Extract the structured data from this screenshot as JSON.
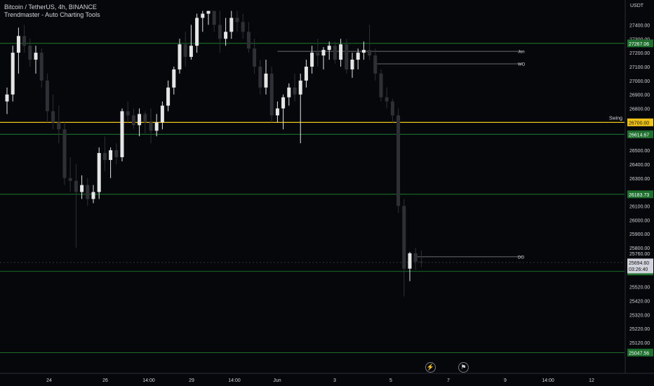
{
  "header": {
    "symbol": "Bitcoin / TetherUS, 4h, BINANCE",
    "indicator": "Trendmaster - Auto Charting Tools"
  },
  "price_scale": {
    "currency": "USDT",
    "ticks": [
      27400,
      27300,
      27200,
      27100,
      27000,
      26900,
      26800,
      26600,
      26500,
      26400,
      26300,
      26200,
      26100,
      26000,
      25900,
      25800,
      25760,
      25520,
      25420,
      25320,
      25220,
      25120
    ],
    "countdown": "03:26:40"
  },
  "time_axis": {
    "labels": [
      "24",
      "26",
      "14:00",
      "29",
      "14:00",
      "Jun",
      "3",
      "5",
      "7",
      "9",
      "14:00",
      "12"
    ]
  },
  "toolbar": {
    "replay_icon": "lightning-icon",
    "snapshot_icon": "flag-icon"
  },
  "colors": {
    "background": "#06070b",
    "candle_up": "#e6e6e6",
    "candle_down": "#2f3036",
    "support_line": "#1f8f34",
    "swing_line": "#f0c419",
    "label_green": "#1e6f2e",
    "label_current": "#d1d4dc",
    "level_line": "#8a8c93"
  },
  "chart_data": {
    "type": "candlestick",
    "title": "Bitcoin / TetherUS, 4h, BINANCE",
    "ylim": [
      25000,
      27500
    ],
    "ohlc": [
      [
        26850,
        26950,
        26760,
        26900
      ],
      [
        26900,
        27250,
        26850,
        27200
      ],
      [
        27200,
        27380,
        27050,
        27320
      ],
      [
        27320,
        27400,
        27200,
        27250
      ],
      [
        27250,
        27300,
        27100,
        27150
      ],
      [
        27150,
        27250,
        27050,
        27200
      ],
      [
        27200,
        27230,
        26950,
        27000
      ],
      [
        27000,
        27050,
        26700,
        26780
      ],
      [
        26780,
        26900,
        26650,
        26700
      ],
      [
        26700,
        26820,
        26550,
        26650
      ],
      [
        26650,
        26700,
        26250,
        26300
      ],
      [
        26300,
        26450,
        26200,
        26280
      ],
      [
        26280,
        26400,
        25800,
        26200
      ],
      [
        26200,
        26320,
        26150,
        26250
      ],
      [
        26250,
        26300,
        26100,
        26150
      ],
      [
        26150,
        26250,
        26120,
        26200
      ],
      [
        26200,
        26520,
        26150,
        26480
      ],
      [
        26480,
        26600,
        26350,
        26430
      ],
      [
        26430,
        26520,
        26300,
        26500
      ],
      [
        26500,
        26550,
        26400,
        26450
      ],
      [
        26450,
        26800,
        26420,
        26780
      ],
      [
        26780,
        26850,
        26700,
        26750
      ],
      [
        26750,
        26800,
        26650,
        26680
      ],
      [
        26680,
        26800,
        26600,
        26760
      ],
      [
        26760,
        26780,
        26620,
        26700
      ],
      [
        26700,
        26800,
        26550,
        26640
      ],
      [
        26640,
        26760,
        26600,
        26700
      ],
      [
        26700,
        26850,
        26650,
        26820
      ],
      [
        26820,
        27000,
        26780,
        26950
      ],
      [
        26950,
        27100,
        26900,
        27080
      ],
      [
        27080,
        27300,
        27050,
        27260
      ],
      [
        27260,
        27350,
        27100,
        27170
      ],
      [
        27170,
        27400,
        27150,
        27250
      ],
      [
        27250,
        27480,
        27200,
        27450
      ],
      [
        27450,
        27500,
        27350,
        27480
      ],
      [
        27480,
        27500,
        27400,
        27500
      ],
      [
        27500,
        27500,
        27350,
        27400
      ],
      [
        27400,
        27500,
        27200,
        27300
      ],
      [
        27300,
        27450,
        27250,
        27350
      ],
      [
        27350,
        27500,
        27300,
        27450
      ],
      [
        27450,
        27500,
        27350,
        27420
      ],
      [
        27420,
        27480,
        27300,
        27350
      ],
      [
        27350,
        27420,
        27200,
        27230
      ],
      [
        27230,
        27300,
        27050,
        27100
      ],
      [
        27100,
        27150,
        26900,
        26950
      ],
      [
        26950,
        27150,
        26900,
        27050
      ],
      [
        27050,
        27100,
        26700,
        26750
      ],
      [
        26750,
        26850,
        26700,
        26800
      ],
      [
        26800,
        26900,
        26650,
        26880
      ],
      [
        26880,
        26980,
        26820,
        26950
      ],
      [
        26950,
        27050,
        26850,
        26900
      ],
      [
        26900,
        27050,
        26550,
        27000
      ],
      [
        27000,
        27150,
        26950,
        27100
      ],
      [
        27100,
        27250,
        27050,
        27200
      ],
      [
        27200,
        27300,
        27100,
        27180
      ],
      [
        27180,
        27240,
        27080,
        27220
      ],
      [
        27220,
        27280,
        27150,
        27250
      ],
      [
        27250,
        27280,
        27120,
        27150
      ],
      [
        27150,
        27300,
        27100,
        27260
      ],
      [
        27260,
        27300,
        27050,
        27080
      ],
      [
        27080,
        27200,
        27020,
        27150
      ],
      [
        27150,
        27230,
        27080,
        27200
      ],
      [
        27200,
        27280,
        27150,
        27220
      ],
      [
        27220,
        27400,
        27150,
        27180
      ],
      [
        27180,
        27230,
        27000,
        27050
      ],
      [
        27050,
        27080,
        26850,
        26880
      ],
      [
        26880,
        26950,
        26800,
        26850
      ],
      [
        26850,
        26870,
        26700,
        26750
      ],
      [
        26750,
        26800,
        26050,
        26100
      ],
      [
        26100,
        26150,
        25450,
        25650
      ],
      [
        25650,
        25770,
        25560,
        25760
      ],
      [
        25760,
        25800,
        25640,
        25700
      ],
      [
        25700,
        25780,
        25660,
        25694.6
      ]
    ],
    "last_price": 25694.6,
    "levels": [
      {
        "price": 27267.06,
        "label": "27267.06",
        "kind": "support"
      },
      {
        "price": 26700.0,
        "label": "26700.00",
        "kind": "swing",
        "name": "Swing"
      },
      {
        "price": 26614.67,
        "label": "26614.67",
        "kind": "support"
      },
      {
        "price": 26183.73,
        "label": "26183.73",
        "kind": "support"
      },
      {
        "price": 25629.99,
        "label": "25629.99",
        "kind": "support"
      },
      {
        "price": 25047.56,
        "label": "25047.56",
        "kind": "support"
      }
    ],
    "annotations": [
      {
        "text": "Jun",
        "price": 27210,
        "from_index": 47,
        "to_index": 90
      },
      {
        "text": "WO",
        "price": 27120,
        "from_index": 64,
        "to_index": 90
      },
      {
        "text": "DO",
        "price": 25735,
        "from_index": 71,
        "to_index": 90
      }
    ]
  }
}
